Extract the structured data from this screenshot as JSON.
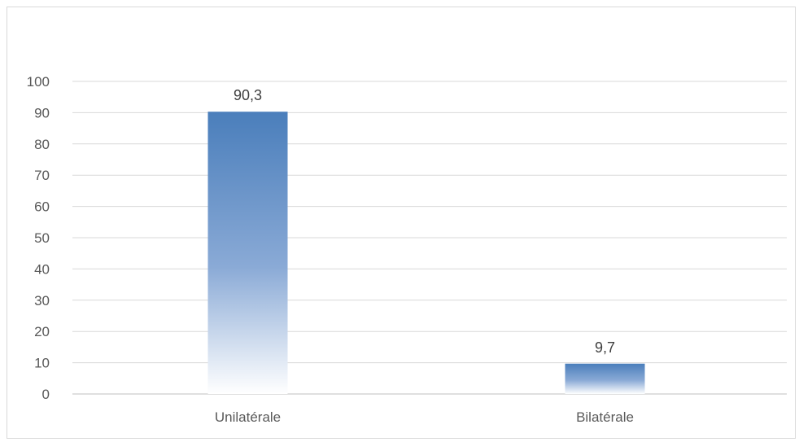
{
  "chart_data": {
    "type": "bar",
    "categories": [
      "Unilatérale",
      "Bilatérale"
    ],
    "values": [
      90.3,
      9.7
    ],
    "data_labels": [
      "90,3",
      "9,7"
    ],
    "ylim": [
      0,
      100
    ],
    "yticks": [
      0,
      10,
      20,
      30,
      40,
      50,
      60,
      70,
      80,
      90,
      100
    ],
    "grid": true,
    "legend": "none",
    "title": "",
    "xlabel": "",
    "ylabel": "",
    "colors": {
      "bar_top": "#4a7ebb",
      "bar_bottom": "#ffffff",
      "grid": "#d9d9d9",
      "axis": "#bfbfbf"
    }
  }
}
